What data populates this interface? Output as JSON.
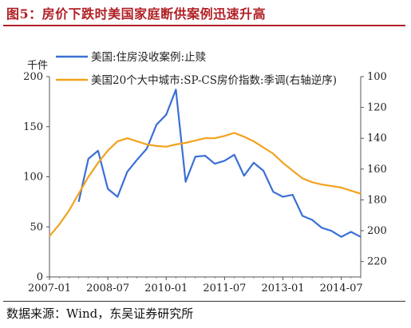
{
  "figure": {
    "title": "图5：房价下跌时美国家庭断供案例迅速升高",
    "source": "数据来源：Wind，东吴证券研究所",
    "colors": {
      "title": "#b01f24",
      "series1": "#3b6fd6",
      "series2": "#f2a21c",
      "axis": "#555555"
    }
  },
  "chart_data": {
    "type": "line",
    "ylabel_left_unit": "千件",
    "x_tick_labels": [
      "2007-01",
      "2008-07",
      "2010-01",
      "2011-07",
      "2013-01",
      "2014-07"
    ],
    "x_tick_positions": [
      2007.0,
      2008.5,
      2010.0,
      2011.5,
      2013.0,
      2014.5
    ],
    "xlim": [
      2007.0,
      2015.0
    ],
    "y_left": {
      "ylim": [
        0,
        200
      ],
      "ticks": [
        0,
        50,
        100,
        150,
        200
      ]
    },
    "y_right": {
      "ylim": [
        100,
        230
      ],
      "inverted": true,
      "ticks": [
        100,
        120,
        140,
        160,
        180,
        200,
        220
      ]
    },
    "legend_position": "top",
    "series": [
      {
        "name": "美国:住房没收案例:止赎",
        "axis": "left",
        "x": [
          2007.75,
          2008.0,
          2008.25,
          2008.5,
          2008.75,
          2009.0,
          2009.25,
          2009.5,
          2009.75,
          2010.0,
          2010.25,
          2010.5,
          2010.75,
          2011.0,
          2011.25,
          2011.5,
          2011.75,
          2012.0,
          2012.25,
          2012.5,
          2012.75,
          2013.0,
          2013.25,
          2013.5,
          2013.75,
          2014.0,
          2014.25,
          2014.5,
          2014.75,
          2015.0
        ],
        "values": [
          75,
          118,
          126,
          88,
          80,
          105,
          117,
          128,
          152,
          162,
          187,
          95,
          120,
          121,
          113,
          116,
          122,
          101,
          114,
          106,
          85,
          80,
          82,
          61,
          57,
          49,
          46,
          40,
          45,
          40
        ]
      },
      {
        "name": "美国20个大中城市:SP-CS房价指数:季调(右轴逆序)",
        "axis": "right",
        "x": [
          2007.0,
          2007.25,
          2007.5,
          2007.75,
          2008.0,
          2008.25,
          2008.5,
          2008.75,
          2009.0,
          2009.25,
          2009.5,
          2009.75,
          2010.0,
          2010.25,
          2010.5,
          2010.75,
          2011.0,
          2011.25,
          2011.5,
          2011.75,
          2012.0,
          2012.25,
          2012.5,
          2012.75,
          2013.0,
          2013.25,
          2013.5,
          2013.75,
          2014.0,
          2014.25,
          2014.5,
          2014.75,
          2015.0
        ],
        "values": [
          203.5,
          196.0,
          187.0,
          176.0,
          165.0,
          156.0,
          148.0,
          142.0,
          140.0,
          142.0,
          144.0,
          145.0,
          145.5,
          144.0,
          143.0,
          141.5,
          140.0,
          140.0,
          138.5,
          136.5,
          139.0,
          142.0,
          146.0,
          150.0,
          156.0,
          161.0,
          166.0,
          168.5,
          170.0,
          171.0,
          172.0,
          174.0,
          176.0
        ]
      }
    ]
  }
}
